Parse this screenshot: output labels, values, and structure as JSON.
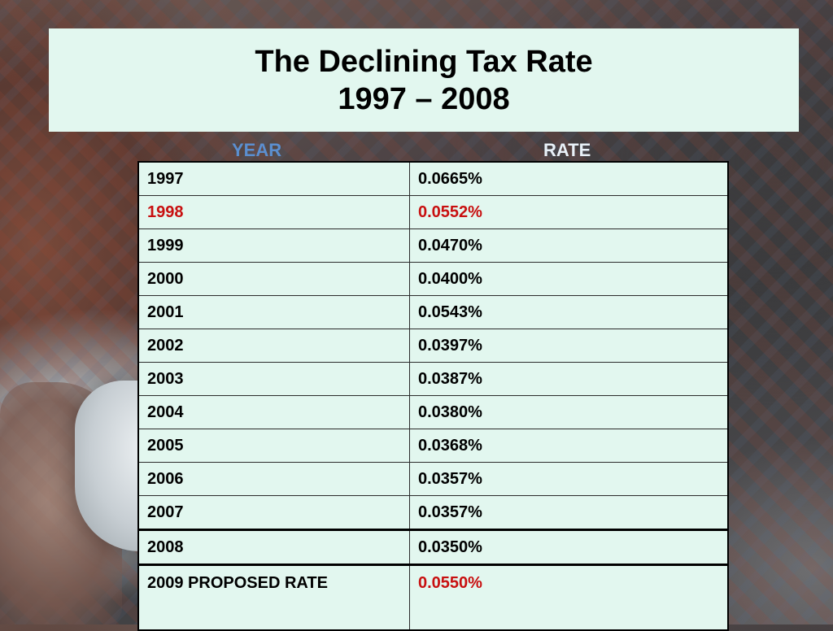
{
  "title": {
    "line1": "The Declining Tax Rate",
    "line2": "1997 – 2008"
  },
  "columns": {
    "year": "YEAR",
    "rate": "RATE"
  },
  "colors": {
    "title_bg": "#e2f7ef",
    "table_bg": "#e2f7ef",
    "highlight": "#c81010",
    "year_header": "#5b8fd0"
  },
  "rows": [
    {
      "year": "1997",
      "rate": "0.0665%"
    },
    {
      "year": "1998",
      "rate": "0.0552%"
    },
    {
      "year": "1999",
      "rate": "0.0470%"
    },
    {
      "year": "2000",
      "rate": "0.0400%"
    },
    {
      "year": "2001",
      "rate": "0.0543%"
    },
    {
      "year": "2002",
      "rate": "0.0397%"
    },
    {
      "year": "2003",
      "rate": "0.0387%"
    },
    {
      "year": "2004",
      "rate": "0.0380%"
    },
    {
      "year": "2005",
      "rate": "0.0368%"
    },
    {
      "year": "2006",
      "rate": "0.0357%"
    },
    {
      "year": "2007",
      "rate": "0.0357%"
    },
    {
      "year": "2008",
      "rate": "0.0350%"
    },
    {
      "year": "2009 PROPOSED RATE",
      "rate": "0.0550%"
    }
  ]
}
